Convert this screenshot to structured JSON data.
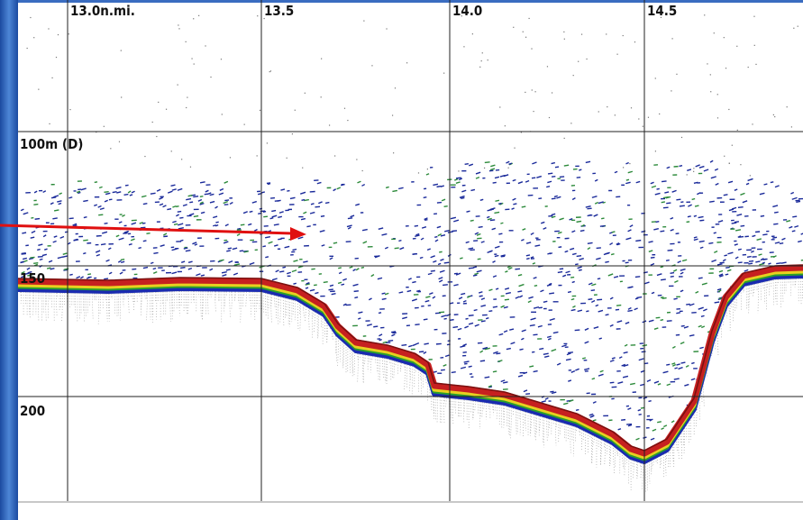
{
  "distance_labels": [
    "13.0n.mi.",
    "13.5",
    "14.0",
    "14.5"
  ],
  "depth_labels": [
    "100m (D)",
    "150",
    "200"
  ]
}
